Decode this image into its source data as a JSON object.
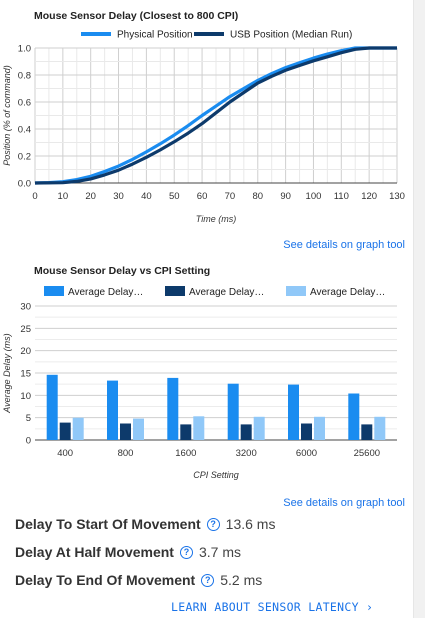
{
  "chart_data": [
    {
      "type": "line",
      "title": "Mouse Sensor Delay (Closest to 800 CPI)",
      "xlabel": "Time (ms)",
      "ylabel": "Position (% of command)",
      "xlim": [
        0,
        130
      ],
      "ylim": [
        0,
        1.0
      ],
      "xticks": [
        "0",
        "10",
        "20",
        "30",
        "40",
        "50",
        "60",
        "70",
        "80",
        "90",
        "100",
        "110",
        "120",
        "130"
      ],
      "yticks": [
        "0.0",
        "0.2",
        "0.4",
        "0.6",
        "0.8",
        "1.0"
      ],
      "grid": true,
      "legend": "top",
      "series": [
        {
          "name": "Physical Position",
          "color": "#1a8cf0",
          "points": [
            [
              0,
              0
            ],
            [
              5,
              0.003
            ],
            [
              10,
              0.01
            ],
            [
              15,
              0.025
            ],
            [
              20,
              0.05
            ],
            [
              25,
              0.085
            ],
            [
              30,
              0.125
            ],
            [
              35,
              0.175
            ],
            [
              40,
              0.23
            ],
            [
              45,
              0.29
            ],
            [
              50,
              0.355
            ],
            [
              55,
              0.425
            ],
            [
              60,
              0.5
            ],
            [
              65,
              0.57
            ],
            [
              70,
              0.64
            ],
            [
              75,
              0.7
            ],
            [
              80,
              0.76
            ],
            [
              85,
              0.81
            ],
            [
              90,
              0.855
            ],
            [
              95,
              0.89
            ],
            [
              100,
              0.925
            ],
            [
              105,
              0.955
            ],
            [
              110,
              0.98
            ],
            [
              115,
              1.0
            ],
            [
              130,
              1.0
            ]
          ]
        },
        {
          "name": "USB Position (Median Run)",
          "color": "#0d3a6b",
          "points": [
            [
              0,
              0
            ],
            [
              10,
              0.002
            ],
            [
              15,
              0.012
            ],
            [
              20,
              0.03
            ],
            [
              25,
              0.06
            ],
            [
              30,
              0.095
            ],
            [
              35,
              0.14
            ],
            [
              40,
              0.19
            ],
            [
              45,
              0.245
            ],
            [
              50,
              0.305
            ],
            [
              55,
              0.37
            ],
            [
              60,
              0.44
            ],
            [
              65,
              0.52
            ],
            [
              70,
              0.6
            ],
            [
              75,
              0.67
            ],
            [
              80,
              0.74
            ],
            [
              85,
              0.79
            ],
            [
              90,
              0.835
            ],
            [
              95,
              0.87
            ],
            [
              100,
              0.905
            ],
            [
              105,
              0.935
            ],
            [
              110,
              0.965
            ],
            [
              115,
              0.99
            ],
            [
              120,
              1.0
            ],
            [
              130,
              1.0
            ]
          ]
        }
      ]
    },
    {
      "type": "bar",
      "title": "Mouse Sensor Delay vs CPI Setting",
      "xlabel": "CPI Setting",
      "ylabel": "Average Delay (ms)",
      "categories": [
        "400",
        "800",
        "1600",
        "3200",
        "6000",
        "25600"
      ],
      "ylim": [
        0,
        30
      ],
      "yticks": [
        "0",
        "5",
        "10",
        "15",
        "20",
        "25",
        "30"
      ],
      "grid": true,
      "legend": "top",
      "series": [
        {
          "name": "Average Delay…",
          "color": "#1a8cf0",
          "values": [
            14.6,
            13.3,
            13.9,
            12.6,
            12.4,
            10.4
          ]
        },
        {
          "name": "Average Delay…",
          "color": "#0d3a6b",
          "values": [
            3.9,
            3.7,
            3.5,
            3.5,
            3.7,
            3.5
          ]
        },
        {
          "name": "Average Delay…",
          "color": "#90c8f8",
          "values": [
            5.0,
            4.8,
            5.3,
            5.2,
            5.2,
            5.2
          ]
        }
      ]
    }
  ],
  "links": {
    "graph_tool_1": "See details on graph tool",
    "graph_tool_2": "See details on graph tool"
  },
  "stats": [
    {
      "label": "Delay To Start Of Movement",
      "value": "13.6 ms"
    },
    {
      "label": "Delay At Half Movement",
      "value": "3.7 ms"
    },
    {
      "label": "Delay To End Of Movement",
      "value": "5.2 ms"
    }
  ],
  "learn_more": "LEARN ABOUT SENSOR LATENCY ›",
  "help_glyph": "?"
}
